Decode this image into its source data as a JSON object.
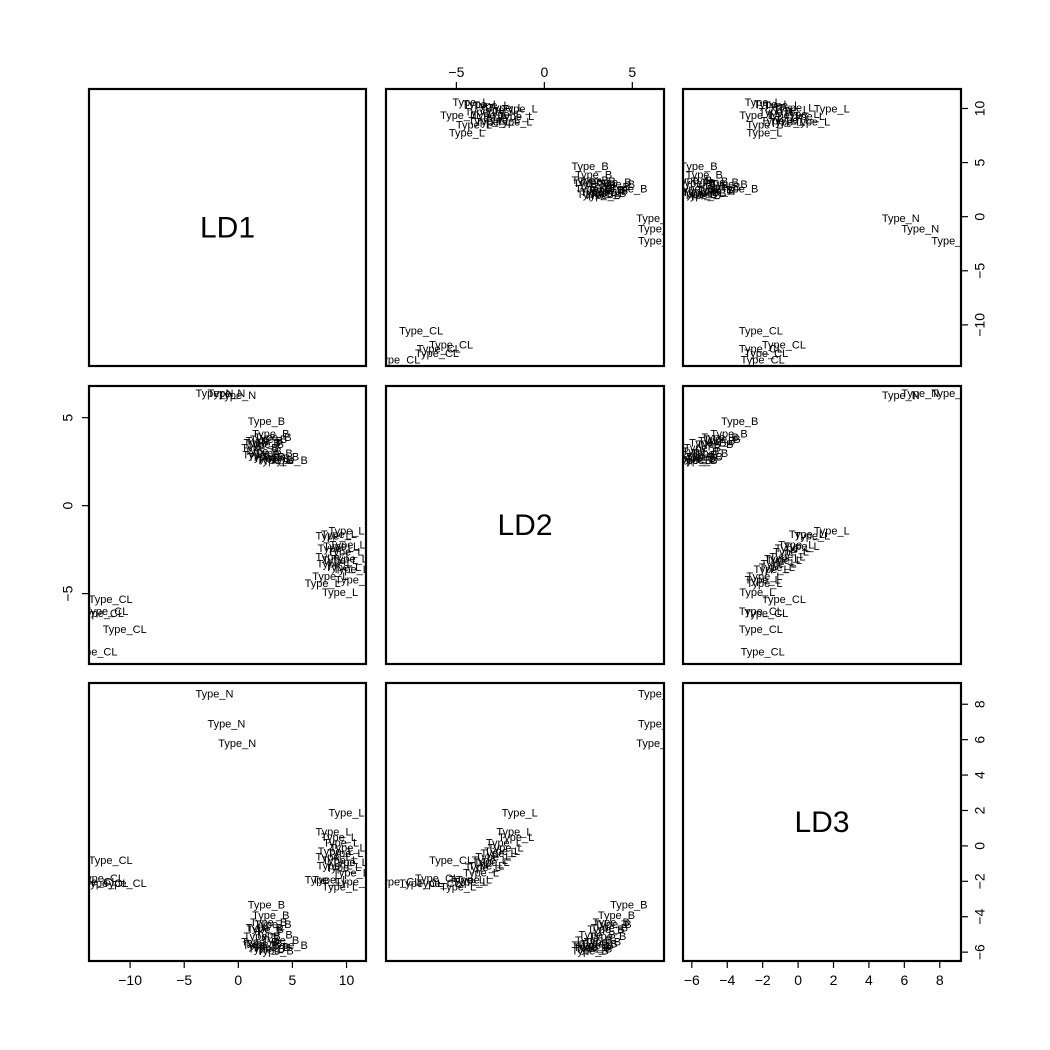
{
  "chart_data": {
    "type": "scatter",
    "variables": [
      "LD1",
      "LD2",
      "LD3"
    ],
    "ranges": {
      "LD1": [
        -13.8,
        11.8
      ],
      "LD2": [
        -9.0,
        6.8
      ],
      "LD3": [
        -6.5,
        9.2
      ]
    },
    "axis_ticks": {
      "top": {
        "variable": "LD2",
        "values": [
          -5,
          0,
          5
        ],
        "labels": [
          "−5",
          "0",
          "5"
        ]
      },
      "bottom": [
        {
          "variable": "LD1",
          "values": [
            -10,
            -5,
            0,
            5,
            10
          ],
          "labels": [
            "−10",
            "−5",
            "0",
            "5",
            "10"
          ]
        },
        {
          "variable": "LD3",
          "values": [
            -6,
            -4,
            -2,
            0,
            2,
            4,
            6,
            8
          ],
          "labels": [
            "−6",
            "−4",
            "−2",
            "0",
            "2",
            "4",
            "6",
            "8"
          ]
        }
      ],
      "left": {
        "variable": "LD2",
        "values": [
          -5,
          0,
          5
        ],
        "labels": [
          "−5",
          "0",
          "5"
        ]
      },
      "right": [
        {
          "variable": "LD1",
          "values": [
            -10,
            -5,
            0,
            5,
            10
          ],
          "labels": [
            "−10",
            "−5",
            "0",
            "5",
            "10"
          ]
        },
        {
          "variable": "LD3",
          "values": [
            -6,
            -4,
            -2,
            0,
            2,
            4,
            6,
            8
          ],
          "labels": [
            "−6",
            "−4",
            "−2",
            "0",
            "2",
            "4",
            "6",
            "8"
          ]
        }
      ]
    },
    "groups": [
      "Type_CL",
      "Type_N",
      "Type_B",
      "Type_L"
    ],
    "points": [
      {
        "label": "Type_CL",
        "LD1": -11.8,
        "LD2": -5.3,
        "LD3": -0.8
      },
      {
        "label": "Type_CL",
        "LD1": -12.6,
        "LD2": -6.1,
        "LD3": -1.8
      },
      {
        "label": "Type_CL",
        "LD1": -10.5,
        "LD2": -7.0,
        "LD3": -2.1
      },
      {
        "label": "Type_CL",
        "LD1": -13.2,
        "LD2": -8.3,
        "LD3": -2.0
      },
      {
        "label": "Type_CL",
        "LD1": -12.2,
        "LD2": -6.0,
        "LD3": -2.1
      },
      {
        "label": "Type_N",
        "LD1": -2.2,
        "LD2": 6.4,
        "LD3": 8.6
      },
      {
        "label": "Type_N",
        "LD1": -1.1,
        "LD2": 6.4,
        "LD3": 6.9
      },
      {
        "label": "Type_N",
        "LD1": -0.1,
        "LD2": 6.3,
        "LD3": 5.8
      },
      {
        "label": "Type_B",
        "LD1": 2.6,
        "LD2": 4.8,
        "LD3": -3.3
      },
      {
        "label": "Type_B",
        "LD1": 3.0,
        "LD2": 4.1,
        "LD3": -3.9
      },
      {
        "label": "Type_B",
        "LD1": 2.8,
        "LD2": 3.8,
        "LD3": -4.3
      },
      {
        "label": "Type_B",
        "LD1": 3.2,
        "LD2": 3.9,
        "LD3": -4.4
      },
      {
        "label": "Type_B",
        "LD1": 2.4,
        "LD2": 3.7,
        "LD3": -4.6
      },
      {
        "label": "Type_B",
        "LD1": 2.2,
        "LD2": 3.6,
        "LD3": -5.1
      },
      {
        "label": "Type_B",
        "LD1": 2.5,
        "LD2": 3.5,
        "LD3": -4.7
      },
      {
        "label": "Type_B",
        "LD1": 2.0,
        "LD2": 3.3,
        "LD3": -5.4
      },
      {
        "label": "Type_B",
        "LD1": 2.3,
        "LD2": 3.1,
        "LD3": -5.5
      },
      {
        "label": "Type_B",
        "LD1": 3.3,
        "LD2": 3.0,
        "LD3": -5.0
      },
      {
        "label": "Type_B",
        "LD1": 2.1,
        "LD2": 2.9,
        "LD3": -5.6
      },
      {
        "label": "Type_B",
        "LD1": 2.6,
        "LD2": 2.8,
        "LD3": -5.8
      },
      {
        "label": "Type_B",
        "LD1": 3.9,
        "LD2": 2.8,
        "LD3": -5.3
      },
      {
        "label": "Type_B",
        "LD1": 3.1,
        "LD2": 2.7,
        "LD3": -5.7
      },
      {
        "label": "Type_B",
        "LD1": 4.7,
        "LD2": 2.6,
        "LD3": -5.6
      },
      {
        "label": "Type_B",
        "LD1": 3.4,
        "LD2": 2.6,
        "LD3": -5.9
      },
      {
        "label": "Type_L",
        "LD1": 10.0,
        "LD2": -1.4,
        "LD3": 1.9
      },
      {
        "label": "Type_L",
        "LD1": 8.8,
        "LD2": -1.7,
        "LD3": 0.8
      },
      {
        "label": "Type_L",
        "LD1": 9.3,
        "LD2": -1.6,
        "LD3": 0.5
      },
      {
        "label": "Type_L",
        "LD1": 9.5,
        "LD2": -2.3,
        "LD3": 0.2
      },
      {
        "label": "Type_L",
        "LD1": 10.1,
        "LD2": -2.2,
        "LD3": -0.1
      },
      {
        "label": "Type_L",
        "LD1": 9.0,
        "LD2": -2.4,
        "LD3": -0.3
      },
      {
        "label": "Type_L",
        "LD1": 9.9,
        "LD2": -2.6,
        "LD3": -0.4
      },
      {
        "label": "Type_L",
        "LD1": 8.8,
        "LD2": -2.9,
        "LD3": -0.6
      },
      {
        "label": "Type_L",
        "LD1": 9.4,
        "LD2": -3.1,
        "LD3": -0.8
      },
      {
        "label": "Type_L",
        "LD1": 10.3,
        "LD2": -3.0,
        "LD3": -0.9
      },
      {
        "label": "Type_L",
        "LD1": 8.9,
        "LD2": -3.3,
        "LD3": -1.1
      },
      {
        "label": "Type_L",
        "LD1": 9.7,
        "LD2": -3.5,
        "LD3": -1.2
      },
      {
        "label": "Type_L",
        "LD1": 10.4,
        "LD2": -3.6,
        "LD3": -1.5
      },
      {
        "label": "Type_L",
        "LD1": 8.5,
        "LD2": -4.0,
        "LD3": -1.9
      },
      {
        "label": "Type_L",
        "LD1": 10.6,
        "LD2": -4.2,
        "LD3": -2.0
      },
      {
        "label": "Type_L",
        "LD1": 7.8,
        "LD2": -4.4,
        "LD3": -1.9
      },
      {
        "label": "Type_L",
        "LD1": 9.4,
        "LD2": -4.9,
        "LD3": -2.3
      }
    ]
  }
}
